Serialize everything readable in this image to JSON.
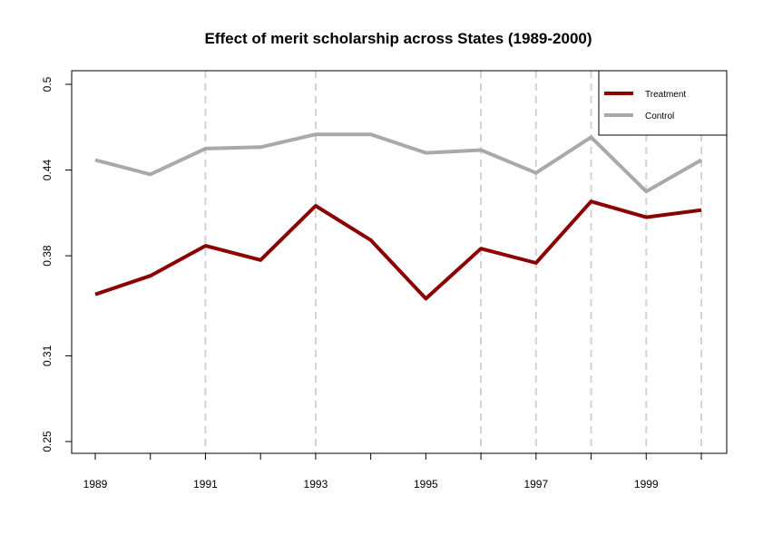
{
  "chart_data": {
    "type": "line",
    "title": "Effect of merit scholarship across States (1989-2000)",
    "xlabel": "",
    "ylabel": "",
    "x": [
      1989,
      1990,
      1991,
      1992,
      1993,
      1994,
      1995,
      1996,
      1997,
      1998,
      1999,
      2000
    ],
    "xlim": [
      1989,
      2000
    ],
    "ylim": [
      0.25,
      0.5
    ],
    "x_ticks": [
      {
        "value": 1989,
        "label": "1989"
      },
      {
        "value": 1991,
        "label": "1991"
      },
      {
        "value": 1993,
        "label": "1993"
      },
      {
        "value": 1995,
        "label": "1995"
      },
      {
        "value": 1997,
        "label": "1997"
      },
      {
        "value": 1999,
        "label": "1999"
      }
    ],
    "y_ticks": [
      {
        "value": 0.25,
        "label": "0.25"
      },
      {
        "value": 0.31,
        "label": "0.31"
      },
      {
        "value": 0.38,
        "label": "0.38"
      },
      {
        "value": 0.44,
        "label": "0.44"
      },
      {
        "value": 0.5,
        "label": "0.5"
      }
    ],
    "vlines": [
      1991,
      1993,
      1996,
      1997,
      1998,
      1999,
      2000
    ],
    "legend_position": "top-right",
    "series": [
      {
        "name": "Treatment",
        "color": "#8B0000",
        "values": [
          0.353,
          0.366,
          0.387,
          0.377,
          0.415,
          0.391,
          0.35,
          0.385,
          0.375,
          0.418,
          0.407,
          0.412
        ]
      },
      {
        "name": "Control",
        "color": "#A9A9A9",
        "values": [
          0.447,
          0.437,
          0.455,
          0.456,
          0.465,
          0.465,
          0.452,
          0.454,
          0.438,
          0.463,
          0.425,
          0.447
        ]
      }
    ]
  }
}
